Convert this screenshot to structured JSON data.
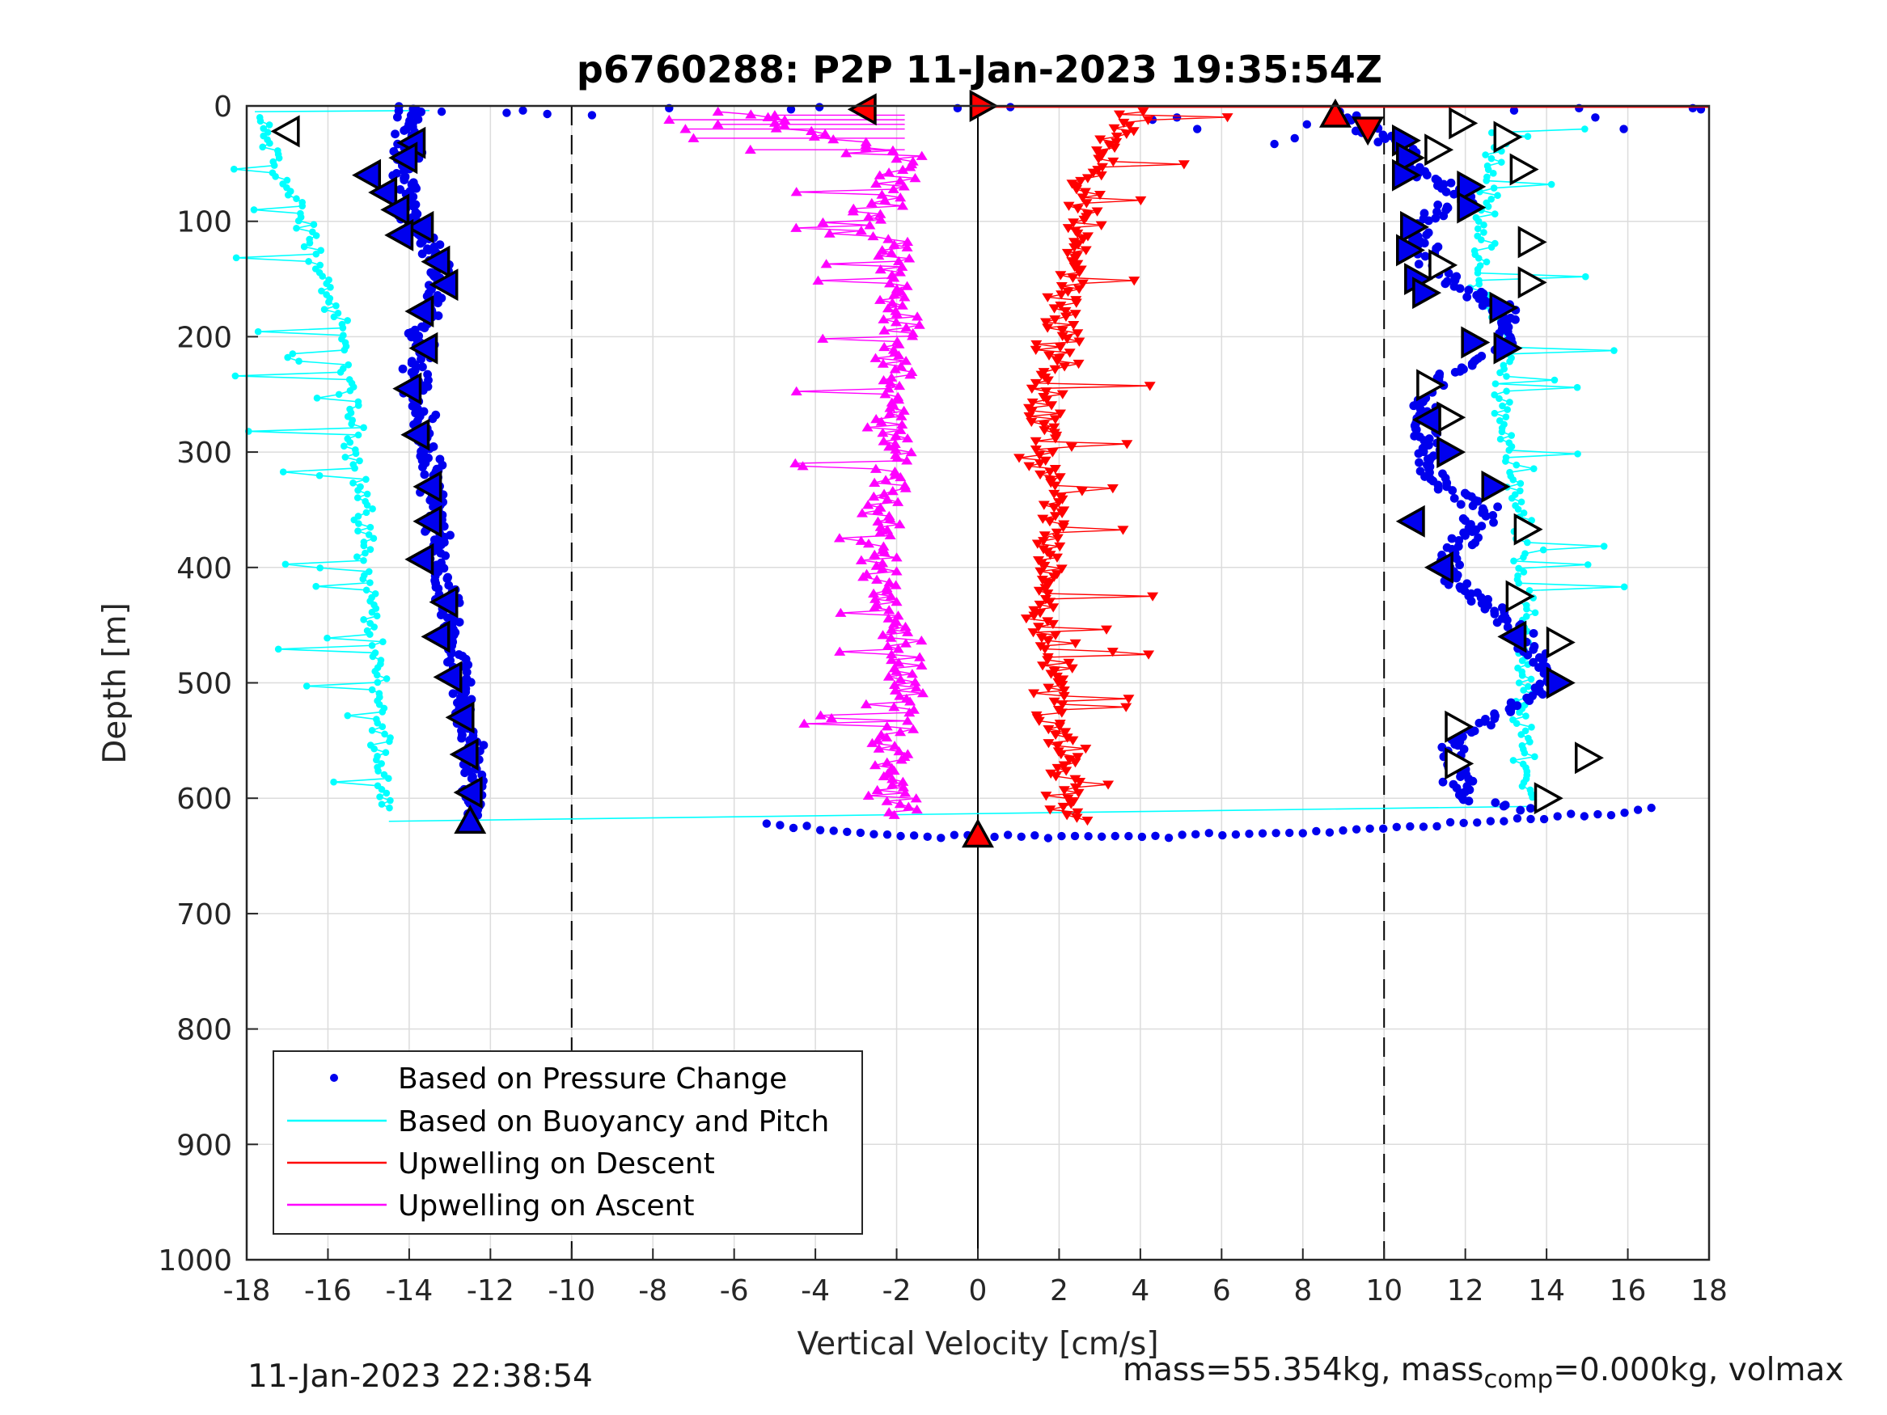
{
  "chart_data": {
    "type": "scatter",
    "title": "p6760288: P2P 11-Jan-2023 19:35:54Z",
    "xlabel": "Vertical Velocity [cm/s]",
    "ylabel": "Depth [m]",
    "xlim": [
      -18,
      18
    ],
    "ylim": [
      0,
      1000
    ],
    "y_reversed": true,
    "grid": true,
    "x_ticks": [
      "-18",
      "-16",
      "-14",
      "-12",
      "-10",
      "-8",
      "-6",
      "-4",
      "-2",
      "0",
      "2",
      "4",
      "6",
      "8",
      "10",
      "12",
      "14",
      "16",
      "18"
    ],
    "y_ticks": [
      "0",
      "100",
      "200",
      "300",
      "400",
      "500",
      "600",
      "700",
      "800",
      "900",
      "1000"
    ],
    "reference_lines": [
      {
        "x": -10,
        "style": "dashed",
        "color": "#000000"
      },
      {
        "x": 0,
        "style": "solid",
        "color": "#000000"
      },
      {
        "x": 10,
        "style": "dashed",
        "color": "#000000"
      }
    ],
    "legend_position": "bottom-left",
    "series": [
      {
        "name": "Based on Pressure Change",
        "color": "#0000ee",
        "marker": "dot",
        "descent_profile": [
          [
            0,
            -13.9
          ],
          [
            50,
            -14.1
          ],
          [
            100,
            -13.9
          ],
          [
            150,
            -13.2
          ],
          [
            200,
            -13.7
          ],
          [
            250,
            -13.9
          ],
          [
            300,
            -13.5
          ],
          [
            350,
            -13.4
          ],
          [
            400,
            -13.3
          ],
          [
            450,
            -13.0
          ],
          [
            500,
            -12.8
          ],
          [
            550,
            -12.5
          ],
          [
            600,
            -12.4
          ],
          [
            620,
            -12.4
          ]
        ],
        "ascent_profile": [
          [
            5,
            9.0
          ],
          [
            20,
            9.6
          ],
          [
            40,
            10.6
          ],
          [
            60,
            11.0
          ],
          [
            80,
            12.0
          ],
          [
            100,
            10.8
          ],
          [
            140,
            11.2
          ],
          [
            180,
            13.0
          ],
          [
            210,
            13.0
          ],
          [
            240,
            11.0
          ],
          [
            280,
            11.0
          ],
          [
            320,
            11.2
          ],
          [
            350,
            12.5
          ],
          [
            400,
            11.4
          ],
          [
            450,
            13.2
          ],
          [
            480,
            13.9
          ],
          [
            500,
            14.2
          ],
          [
            550,
            11.7
          ],
          [
            600,
            11.9
          ],
          [
            610,
            13.5
          ]
        ]
      },
      {
        "name": "Based on Buoyancy and Pitch",
        "color": "#00ffff",
        "marker": "line",
        "descent_profile": [
          [
            10,
            -17.7
          ],
          [
            50,
            -17.3
          ],
          [
            100,
            -16.6
          ],
          [
            150,
            -16.1
          ],
          [
            200,
            -15.7
          ],
          [
            250,
            -15.5
          ],
          [
            300,
            -15.3
          ],
          [
            350,
            -15.1
          ],
          [
            400,
            -15.1
          ],
          [
            450,
            -14.9
          ],
          [
            500,
            -14.8
          ],
          [
            550,
            -14.7
          ],
          [
            610,
            -14.6
          ]
        ],
        "ascent_profile": [
          [
            20,
            13.0
          ],
          [
            60,
            12.6
          ],
          [
            100,
            12.5
          ],
          [
            150,
            12.3
          ],
          [
            200,
            13.0
          ],
          [
            250,
            12.9
          ],
          [
            300,
            13.0
          ],
          [
            350,
            13.4
          ],
          [
            400,
            13.4
          ],
          [
            450,
            13.5
          ],
          [
            500,
            13.4
          ],
          [
            550,
            13.4
          ],
          [
            600,
            13.6
          ]
        ]
      },
      {
        "name": "Upwelling on Descent",
        "color": "#ff0000",
        "marker": "triangle-down",
        "profile": [
          [
            5,
            4.0
          ],
          [
            20,
            3.8
          ],
          [
            40,
            3.0
          ],
          [
            60,
            2.6
          ],
          [
            80,
            2.5
          ],
          [
            100,
            2.7
          ],
          [
            150,
            2.3
          ],
          [
            200,
            2.1
          ],
          [
            250,
            1.6
          ],
          [
            300,
            1.7
          ],
          [
            350,
            1.8
          ],
          [
            400,
            1.8
          ],
          [
            450,
            1.7
          ],
          [
            500,
            1.9
          ],
          [
            550,
            2.0
          ],
          [
            600,
            2.2
          ],
          [
            620,
            2.2
          ]
        ]
      },
      {
        "name": "Upwelling on Ascent",
        "color": "#ff00ff",
        "marker": "triangle-up",
        "profile": [
          [
            5,
            -6.0
          ],
          [
            20,
            -4.6
          ],
          [
            40,
            -1.8
          ],
          [
            60,
            -1.8
          ],
          [
            80,
            -2.4
          ],
          [
            100,
            -2.6
          ],
          [
            150,
            -1.8
          ],
          [
            200,
            -2.0
          ],
          [
            250,
            -2.1
          ],
          [
            300,
            -2.0
          ],
          [
            350,
            -2.5
          ],
          [
            400,
            -2.4
          ],
          [
            450,
            -1.9
          ],
          [
            500,
            -1.8
          ],
          [
            550,
            -2.1
          ],
          [
            600,
            -1.9
          ],
          [
            615,
            -1.8
          ]
        ]
      }
    ],
    "markers": [
      {
        "kind": "left",
        "x": -17.0,
        "y": 22,
        "fill": "#ffffff"
      },
      {
        "kind": "left",
        "x": -13.9,
        "y": 32,
        "fill": "#0000ee"
      },
      {
        "kind": "left",
        "x": -14.1,
        "y": 45,
        "fill": "#0000ee"
      },
      {
        "kind": "left",
        "x": -15.0,
        "y": 60,
        "fill": "#0000ee"
      },
      {
        "kind": "left",
        "x": -14.6,
        "y": 75,
        "fill": "#0000ee"
      },
      {
        "kind": "left",
        "x": -14.3,
        "y": 90,
        "fill": "#0000ee"
      },
      {
        "kind": "left",
        "x": -13.7,
        "y": 105,
        "fill": "#0000ee"
      },
      {
        "kind": "left",
        "x": -14.2,
        "y": 112,
        "fill": "#0000ee"
      },
      {
        "kind": "left",
        "x": -13.3,
        "y": 135,
        "fill": "#0000ee"
      },
      {
        "kind": "left",
        "x": -13.1,
        "y": 155,
        "fill": "#0000ee"
      },
      {
        "kind": "left",
        "x": -13.7,
        "y": 178,
        "fill": "#0000ee"
      },
      {
        "kind": "left",
        "x": -13.6,
        "y": 210,
        "fill": "#0000ee"
      },
      {
        "kind": "left",
        "x": -14.0,
        "y": 245,
        "fill": "#0000ee"
      },
      {
        "kind": "left",
        "x": -13.8,
        "y": 285,
        "fill": "#0000ee"
      },
      {
        "kind": "left",
        "x": -13.5,
        "y": 330,
        "fill": "#0000ee"
      },
      {
        "kind": "left",
        "x": -13.5,
        "y": 360,
        "fill": "#0000ee"
      },
      {
        "kind": "left",
        "x": -13.7,
        "y": 393,
        "fill": "#0000ee"
      },
      {
        "kind": "left",
        "x": -13.1,
        "y": 430,
        "fill": "#0000ee"
      },
      {
        "kind": "left",
        "x": -13.3,
        "y": 460,
        "fill": "#0000ee"
      },
      {
        "kind": "left",
        "x": -13.0,
        "y": 495,
        "fill": "#0000ee"
      },
      {
        "kind": "left",
        "x": -12.7,
        "y": 530,
        "fill": "#0000ee"
      },
      {
        "kind": "left",
        "x": -12.6,
        "y": 562,
        "fill": "#0000ee"
      },
      {
        "kind": "left",
        "x": -12.5,
        "y": 595,
        "fill": "#0000ee"
      },
      {
        "kind": "up",
        "x": -12.5,
        "y": 620,
        "fill": "#0000ee"
      },
      {
        "kind": "left",
        "x": -2.8,
        "y": 3,
        "fill": "#ff0000"
      },
      {
        "kind": "right",
        "x": 0.1,
        "y": 0,
        "fill": "#ff0000"
      },
      {
        "kind": "up",
        "x": 8.8,
        "y": 8,
        "fill": "#ff0000"
      },
      {
        "kind": "down",
        "x": 9.6,
        "y": 20,
        "fill": "#ff0000"
      },
      {
        "kind": "up",
        "x": 0.0,
        "y": 632,
        "fill": "#ff0000"
      },
      {
        "kind": "right",
        "x": 11.9,
        "y": 15,
        "fill": "#ffffff"
      },
      {
        "kind": "right",
        "x": 13.0,
        "y": 27,
        "fill": "#ffffff"
      },
      {
        "kind": "right",
        "x": 10.5,
        "y": 30,
        "fill": "#0000ee"
      },
      {
        "kind": "right",
        "x": 11.3,
        "y": 38,
        "fill": "#ffffff"
      },
      {
        "kind": "right",
        "x": 10.6,
        "y": 45,
        "fill": "#0000ee"
      },
      {
        "kind": "right",
        "x": 13.4,
        "y": 55,
        "fill": "#ffffff"
      },
      {
        "kind": "right",
        "x": 10.5,
        "y": 60,
        "fill": "#0000ee"
      },
      {
        "kind": "right",
        "x": 12.1,
        "y": 70,
        "fill": "#0000ee"
      },
      {
        "kind": "right",
        "x": 12.1,
        "y": 88,
        "fill": "#0000ee"
      },
      {
        "kind": "right",
        "x": 10.7,
        "y": 105,
        "fill": "#0000ee"
      },
      {
        "kind": "right",
        "x": 13.6,
        "y": 118,
        "fill": "#ffffff"
      },
      {
        "kind": "right",
        "x": 10.6,
        "y": 125,
        "fill": "#0000ee"
      },
      {
        "kind": "right",
        "x": 11.4,
        "y": 138,
        "fill": "#ffffff"
      },
      {
        "kind": "right",
        "x": 10.8,
        "y": 150,
        "fill": "#0000ee"
      },
      {
        "kind": "right",
        "x": 13.6,
        "y": 153,
        "fill": "#ffffff"
      },
      {
        "kind": "right",
        "x": 11.0,
        "y": 162,
        "fill": "#0000ee"
      },
      {
        "kind": "right",
        "x": 12.9,
        "y": 175,
        "fill": "#0000ee"
      },
      {
        "kind": "right",
        "x": 12.2,
        "y": 205,
        "fill": "#0000ee"
      },
      {
        "kind": "right",
        "x": 13.0,
        "y": 210,
        "fill": "#0000ee"
      },
      {
        "kind": "right",
        "x": 11.1,
        "y": 242,
        "fill": "#ffffff"
      },
      {
        "kind": "right",
        "x": 11.6,
        "y": 270,
        "fill": "#ffffff"
      },
      {
        "kind": "left",
        "x": 11.1,
        "y": 272,
        "fill": "#0000ee"
      },
      {
        "kind": "right",
        "x": 11.6,
        "y": 300,
        "fill": "#0000ee"
      },
      {
        "kind": "right",
        "x": 12.7,
        "y": 330,
        "fill": "#0000ee"
      },
      {
        "kind": "left",
        "x": 10.7,
        "y": 360,
        "fill": "#0000ee"
      },
      {
        "kind": "right",
        "x": 13.5,
        "y": 367,
        "fill": "#ffffff"
      },
      {
        "kind": "left",
        "x": 11.4,
        "y": 400,
        "fill": "#0000ee"
      },
      {
        "kind": "right",
        "x": 13.3,
        "y": 425,
        "fill": "#ffffff"
      },
      {
        "kind": "left",
        "x": 13.2,
        "y": 460,
        "fill": "#0000ee"
      },
      {
        "kind": "right",
        "x": 14.3,
        "y": 465,
        "fill": "#ffffff"
      },
      {
        "kind": "right",
        "x": 14.3,
        "y": 500,
        "fill": "#0000ee"
      },
      {
        "kind": "right",
        "x": 11.8,
        "y": 538,
        "fill": "#ffffff"
      },
      {
        "kind": "right",
        "x": 15.0,
        "y": 565,
        "fill": "#ffffff"
      },
      {
        "kind": "right",
        "x": 11.8,
        "y": 570,
        "fill": "#ffffff"
      },
      {
        "kind": "right",
        "x": 14.0,
        "y": 600,
        "fill": "#ffffff"
      }
    ]
  },
  "legend": {
    "entries": [
      {
        "label": "Based on Pressure Change",
        "color": "#0000ee",
        "symbol": "dot"
      },
      {
        "label": "Based on Buoyancy and Pitch",
        "color": "#00ffff",
        "symbol": "line"
      },
      {
        "label": "Upwelling on Descent",
        "color": "#ff0000",
        "symbol": "line"
      },
      {
        "label": "Upwelling on Ascent",
        "color": "#ff00ff",
        "symbol": "line"
      }
    ]
  },
  "footer": {
    "left_timestamp": "11-Jan-2023 22:38:54",
    "right_mass": "mass=55.354kg, mass",
    "right_mass_sub": "comp",
    "right_rest": "=0.000kg, volmax"
  }
}
